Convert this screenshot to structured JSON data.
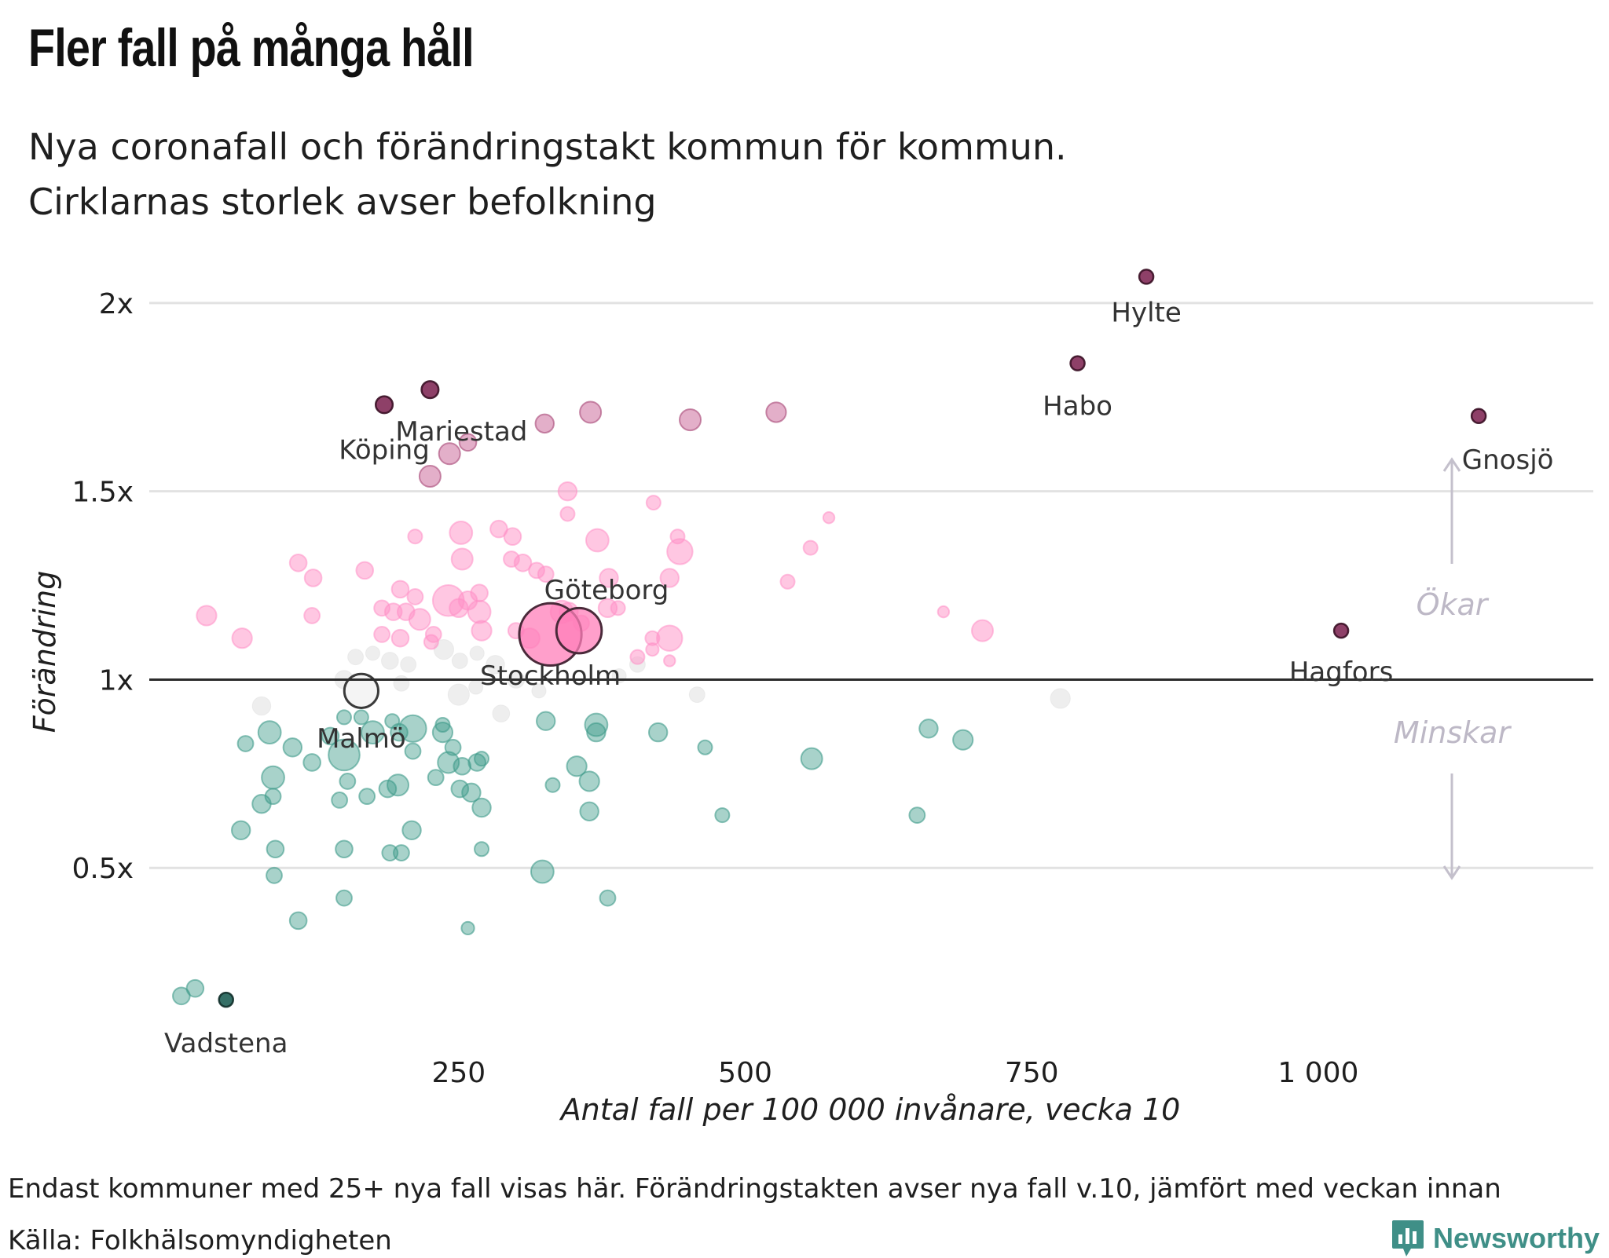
{
  "title": "Fler fall på många håll",
  "subtitle_lines": [
    "Nya coronafall och förändringstakt kommun för kommun.",
    "Cirklarnas storlek avser befolkning"
  ],
  "footnote": "Endast kommuner med 25+ nya fall visas här. Förändringstakten avser nya fall v.10, jämfört med veckan innan",
  "source": "Källa: Folkhälsomyndigheten",
  "brand": "Newsworthy",
  "chart_data": {
    "type": "scatter",
    "xlabel": "Antal fall per 100 000 invånare, vecka 10",
    "ylabel": "Förändring",
    "xlim": [
      -20,
      1240
    ],
    "ylim": [
      0.0,
      2.2
    ],
    "x_ticks": [
      {
        "value": 250,
        "label": "250"
      },
      {
        "value": 500,
        "label": "500"
      },
      {
        "value": 750,
        "label": "750"
      },
      {
        "value": 1000,
        "label": "1 000"
      }
    ],
    "y_ticks": [
      {
        "value": 0.5,
        "label": "0.5x"
      },
      {
        "value": 1,
        "label": "1x"
      },
      {
        "value": 1.5,
        "label": "1.5x"
      },
      {
        "value": 2,
        "label": "2x"
      }
    ],
    "grid": "horizontal",
    "baseline": 1,
    "annotations": {
      "up": "Ökar",
      "down": "Minskar"
    },
    "colors": {
      "increase": "#ff8fc6",
      "decrease": "#3f9b8a",
      "neutral": "#e3e3e3",
      "highlight_increase": "#7a1f4d",
      "highlight_decrease": "#1f5f55",
      "big_city": "#ff7fba"
    },
    "points": [
      {
        "x": 850,
        "y": 2.07,
        "size": 1,
        "cat": "hi_up",
        "label": "Hylte"
      },
      {
        "x": 790,
        "y": 1.84,
        "size": 1,
        "cat": "hi_up",
        "label": "Habo"
      },
      {
        "x": 1140,
        "y": 1.7,
        "size": 1,
        "cat": "hi_up",
        "label": "Gnosjö"
      },
      {
        "x": 1020,
        "y": 1.13,
        "size": 1,
        "cat": "hi_up",
        "label": "Hagfors"
      },
      {
        "x": 225,
        "y": 1.77,
        "size": 1.2,
        "cat": "hi_up",
        "label": "Mariestad"
      },
      {
        "x": 185,
        "y": 1.73,
        "size": 1.2,
        "cat": "hi_up",
        "label": "Köping"
      },
      {
        "x": 47,
        "y": 0.15,
        "size": 1,
        "cat": "hi_down",
        "label": "Vadstena"
      },
      {
        "x": 330,
        "y": 1.12,
        "size": 4.4,
        "cat": "big",
        "label": "Stockholm"
      },
      {
        "x": 355,
        "y": 1.13,
        "size": 3.2,
        "cat": "big",
        "label": "Göteborg"
      },
      {
        "x": 165,
        "y": 0.97,
        "size": 2.4,
        "cat": "neutral_hi",
        "label": "Malmö"
      },
      {
        "x": 325,
        "y": 1.68,
        "size": 1.3,
        "cat": "mid_up"
      },
      {
        "x": 365,
        "y": 1.71,
        "size": 1.5,
        "cat": "mid_up"
      },
      {
        "x": 452,
        "y": 1.69,
        "size": 1.5,
        "cat": "mid_up"
      },
      {
        "x": 527,
        "y": 1.71,
        "size": 1.4,
        "cat": "mid_up"
      },
      {
        "x": 242,
        "y": 1.6,
        "size": 1.5,
        "cat": "mid_up"
      },
      {
        "x": 258,
        "y": 1.63,
        "size": 1.2,
        "cat": "mid_up"
      },
      {
        "x": 225,
        "y": 1.54,
        "size": 1.5,
        "cat": "mid_up"
      },
      {
        "x": 345,
        "y": 1.5,
        "size": 1.3,
        "cat": "up"
      },
      {
        "x": 345,
        "y": 1.44,
        "size": 1,
        "cat": "up"
      },
      {
        "x": 420,
        "y": 1.47,
        "size": 1,
        "cat": "up"
      },
      {
        "x": 573,
        "y": 1.43,
        "size": 0.8,
        "cat": "up"
      },
      {
        "x": 252,
        "y": 1.39,
        "size": 1.6,
        "cat": "up"
      },
      {
        "x": 285,
        "y": 1.4,
        "size": 1.2,
        "cat": "up"
      },
      {
        "x": 297,
        "y": 1.38,
        "size": 1.2,
        "cat": "up"
      },
      {
        "x": 212,
        "y": 1.38,
        "size": 1,
        "cat": "up"
      },
      {
        "x": 371,
        "y": 1.37,
        "size": 1.6,
        "cat": "up"
      },
      {
        "x": 441,
        "y": 1.38,
        "size": 1,
        "cat": "up"
      },
      {
        "x": 443,
        "y": 1.34,
        "size": 1.8,
        "cat": "up"
      },
      {
        "x": 557,
        "y": 1.35,
        "size": 1,
        "cat": "up"
      },
      {
        "x": 253,
        "y": 1.32,
        "size": 1.5,
        "cat": "up"
      },
      {
        "x": 296,
        "y": 1.32,
        "size": 1.1,
        "cat": "up"
      },
      {
        "x": 306,
        "y": 1.31,
        "size": 1.2,
        "cat": "up"
      },
      {
        "x": 318,
        "y": 1.29,
        "size": 1.1,
        "cat": "up"
      },
      {
        "x": 326,
        "y": 1.28,
        "size": 1.1,
        "cat": "up"
      },
      {
        "x": 110,
        "y": 1.31,
        "size": 1.2,
        "cat": "up"
      },
      {
        "x": 123,
        "y": 1.27,
        "size": 1.2,
        "cat": "up"
      },
      {
        "x": 168,
        "y": 1.29,
        "size": 1.2,
        "cat": "up"
      },
      {
        "x": 381,
        "y": 1.27,
        "size": 1.3,
        "cat": "up"
      },
      {
        "x": 434,
        "y": 1.27,
        "size": 1.3,
        "cat": "up"
      },
      {
        "x": 537,
        "y": 1.26,
        "size": 1,
        "cat": "up"
      },
      {
        "x": 241,
        "y": 1.21,
        "size": 2.2,
        "cat": "up"
      },
      {
        "x": 268,
        "y": 1.23,
        "size": 1.2,
        "cat": "up"
      },
      {
        "x": 199,
        "y": 1.24,
        "size": 1.2,
        "cat": "up"
      },
      {
        "x": 212,
        "y": 1.22,
        "size": 1.1,
        "cat": "up"
      },
      {
        "x": 258,
        "y": 1.21,
        "size": 1.3,
        "cat": "up"
      },
      {
        "x": 268,
        "y": 1.18,
        "size": 1.6,
        "cat": "up"
      },
      {
        "x": 346,
        "y": 1.18,
        "size": 1.3,
        "cat": "up"
      },
      {
        "x": 380,
        "y": 1.19,
        "size": 1.3,
        "cat": "up"
      },
      {
        "x": 389,
        "y": 1.19,
        "size": 1,
        "cat": "up"
      },
      {
        "x": 183,
        "y": 1.19,
        "size": 1.1,
        "cat": "up"
      },
      {
        "x": 193,
        "y": 1.18,
        "size": 1.2,
        "cat": "up"
      },
      {
        "x": 204,
        "y": 1.18,
        "size": 1.2,
        "cat": "up"
      },
      {
        "x": 216,
        "y": 1.16,
        "size": 1.5,
        "cat": "up"
      },
      {
        "x": 250,
        "y": 1.19,
        "size": 1.3,
        "cat": "up"
      },
      {
        "x": 30,
        "y": 1.17,
        "size": 1.4,
        "cat": "up"
      },
      {
        "x": 122,
        "y": 1.17,
        "size": 1.1,
        "cat": "up"
      },
      {
        "x": 673,
        "y": 1.18,
        "size": 0.8,
        "cat": "up"
      },
      {
        "x": 270,
        "y": 1.13,
        "size": 1.4,
        "cat": "up"
      },
      {
        "x": 300,
        "y": 1.13,
        "size": 1.1,
        "cat": "up"
      },
      {
        "x": 312,
        "y": 1.11,
        "size": 1.4,
        "cat": "up"
      },
      {
        "x": 434,
        "y": 1.11,
        "size": 1.8,
        "cat": "up"
      },
      {
        "x": 707,
        "y": 1.13,
        "size": 1.5,
        "cat": "up"
      },
      {
        "x": 61,
        "y": 1.11,
        "size": 1.4,
        "cat": "up"
      },
      {
        "x": 183,
        "y": 1.12,
        "size": 1.1,
        "cat": "up"
      },
      {
        "x": 199,
        "y": 1.11,
        "size": 1.2,
        "cat": "up"
      },
      {
        "x": 419,
        "y": 1.11,
        "size": 1,
        "cat": "up"
      },
      {
        "x": 228,
        "y": 1.12,
        "size": 1.1,
        "cat": "up"
      },
      {
        "x": 357,
        "y": 1.15,
        "size": 1.1,
        "cat": "up"
      },
      {
        "x": 340,
        "y": 1.18,
        "size": 1.6,
        "cat": "up"
      },
      {
        "x": 226,
        "y": 1.1,
        "size": 1,
        "cat": "up"
      },
      {
        "x": 434,
        "y": 1.05,
        "size": 0.8,
        "cat": "up"
      },
      {
        "x": 419,
        "y": 1.08,
        "size": 0.9,
        "cat": "up"
      },
      {
        "x": 406,
        "y": 1.06,
        "size": 1,
        "cat": "up"
      },
      {
        "x": 160,
        "y": 1.06,
        "size": 1.1,
        "cat": "neutral"
      },
      {
        "x": 175,
        "y": 1.07,
        "size": 1,
        "cat": "neutral"
      },
      {
        "x": 190,
        "y": 1.05,
        "size": 1.2,
        "cat": "neutral"
      },
      {
        "x": 206,
        "y": 1.04,
        "size": 1.1,
        "cat": "neutral"
      },
      {
        "x": 237,
        "y": 1.08,
        "size": 1.4,
        "cat": "neutral"
      },
      {
        "x": 251,
        "y": 1.05,
        "size": 1.1,
        "cat": "neutral"
      },
      {
        "x": 266,
        "y": 1.07,
        "size": 1,
        "cat": "neutral"
      },
      {
        "x": 282,
        "y": 1.04,
        "size": 1.3,
        "cat": "neutral"
      },
      {
        "x": 150,
        "y": 1.0,
        "size": 1.3,
        "cat": "neutral"
      },
      {
        "x": 200,
        "y": 0.99,
        "size": 1.1,
        "cat": "neutral"
      },
      {
        "x": 250,
        "y": 0.96,
        "size": 1.5,
        "cat": "neutral"
      },
      {
        "x": 300,
        "y": 1.0,
        "size": 1.2,
        "cat": "neutral"
      },
      {
        "x": 320,
        "y": 0.97,
        "size": 1,
        "cat": "neutral"
      },
      {
        "x": 390,
        "y": 1.01,
        "size": 1,
        "cat": "neutral"
      },
      {
        "x": 406,
        "y": 1.04,
        "size": 1.1,
        "cat": "neutral"
      },
      {
        "x": 458,
        "y": 0.96,
        "size": 1.1,
        "cat": "neutral"
      },
      {
        "x": 775,
        "y": 0.95,
        "size": 1.4,
        "cat": "neutral"
      },
      {
        "x": 78,
        "y": 0.93,
        "size": 1.3,
        "cat": "neutral"
      },
      {
        "x": 287,
        "y": 0.91,
        "size": 1.2,
        "cat": "neutral"
      },
      {
        "x": 265,
        "y": 0.98,
        "size": 1,
        "cat": "neutral"
      },
      {
        "x": 150,
        "y": 0.9,
        "size": 1,
        "cat": "down"
      },
      {
        "x": 165,
        "y": 0.9,
        "size": 1,
        "cat": "down"
      },
      {
        "x": 192,
        "y": 0.89,
        "size": 1,
        "cat": "down"
      },
      {
        "x": 236,
        "y": 0.88,
        "size": 1,
        "cat": "down"
      },
      {
        "x": 85,
        "y": 0.86,
        "size": 1.6,
        "cat": "down"
      },
      {
        "x": 175,
        "y": 0.86,
        "size": 1.6,
        "cat": "down"
      },
      {
        "x": 198,
        "y": 0.86,
        "size": 1.2,
        "cat": "down"
      },
      {
        "x": 210,
        "y": 0.87,
        "size": 1.9,
        "cat": "down"
      },
      {
        "x": 236,
        "y": 0.86,
        "size": 1.4,
        "cat": "down"
      },
      {
        "x": 326,
        "y": 0.89,
        "size": 1.3,
        "cat": "down"
      },
      {
        "x": 370,
        "y": 0.88,
        "size": 1.6,
        "cat": "down"
      },
      {
        "x": 370,
        "y": 0.86,
        "size": 1.3,
        "cat": "down"
      },
      {
        "x": 424,
        "y": 0.86,
        "size": 1.3,
        "cat": "down"
      },
      {
        "x": 660,
        "y": 0.87,
        "size": 1.3,
        "cat": "down"
      },
      {
        "x": 690,
        "y": 0.84,
        "size": 1.4,
        "cat": "down"
      },
      {
        "x": 64,
        "y": 0.83,
        "size": 1.1,
        "cat": "down"
      },
      {
        "x": 150,
        "y": 0.8,
        "size": 2.2,
        "cat": "down"
      },
      {
        "x": 138,
        "y": 0.85,
        "size": 1.2,
        "cat": "down"
      },
      {
        "x": 210,
        "y": 0.81,
        "size": 1.1,
        "cat": "down"
      },
      {
        "x": 245,
        "y": 0.82,
        "size": 1.1,
        "cat": "down"
      },
      {
        "x": 105,
        "y": 0.82,
        "size": 1.3,
        "cat": "down"
      },
      {
        "x": 465,
        "y": 0.82,
        "size": 1,
        "cat": "down"
      },
      {
        "x": 122,
        "y": 0.78,
        "size": 1.2,
        "cat": "down"
      },
      {
        "x": 241,
        "y": 0.78,
        "size": 1.5,
        "cat": "down"
      },
      {
        "x": 253,
        "y": 0.77,
        "size": 1.2,
        "cat": "down"
      },
      {
        "x": 266,
        "y": 0.78,
        "size": 1.2,
        "cat": "down"
      },
      {
        "x": 270,
        "y": 0.79,
        "size": 1,
        "cat": "down"
      },
      {
        "x": 353,
        "y": 0.77,
        "size": 1.4,
        "cat": "down"
      },
      {
        "x": 558,
        "y": 0.79,
        "size": 1.5,
        "cat": "down"
      },
      {
        "x": 88,
        "y": 0.74,
        "size": 1.6,
        "cat": "down"
      },
      {
        "x": 153,
        "y": 0.73,
        "size": 1.1,
        "cat": "down"
      },
      {
        "x": 188,
        "y": 0.71,
        "size": 1.2,
        "cat": "down"
      },
      {
        "x": 197,
        "y": 0.72,
        "size": 1.5,
        "cat": "down"
      },
      {
        "x": 230,
        "y": 0.74,
        "size": 1.1,
        "cat": "down"
      },
      {
        "x": 251,
        "y": 0.71,
        "size": 1.2,
        "cat": "down"
      },
      {
        "x": 261,
        "y": 0.7,
        "size": 1.3,
        "cat": "down"
      },
      {
        "x": 332,
        "y": 0.72,
        "size": 1,
        "cat": "down"
      },
      {
        "x": 364,
        "y": 0.73,
        "size": 1.4,
        "cat": "down"
      },
      {
        "x": 88,
        "y": 0.69,
        "size": 1.1,
        "cat": "down"
      },
      {
        "x": 146,
        "y": 0.68,
        "size": 1.1,
        "cat": "down"
      },
      {
        "x": 170,
        "y": 0.69,
        "size": 1.1,
        "cat": "down"
      },
      {
        "x": 78,
        "y": 0.67,
        "size": 1.3,
        "cat": "down"
      },
      {
        "x": 270,
        "y": 0.66,
        "size": 1.3,
        "cat": "down"
      },
      {
        "x": 364,
        "y": 0.65,
        "size": 1.3,
        "cat": "down"
      },
      {
        "x": 480,
        "y": 0.64,
        "size": 1,
        "cat": "down"
      },
      {
        "x": 650,
        "y": 0.64,
        "size": 1.1,
        "cat": "down"
      },
      {
        "x": 60,
        "y": 0.6,
        "size": 1.3,
        "cat": "down"
      },
      {
        "x": 209,
        "y": 0.6,
        "size": 1.3,
        "cat": "down"
      },
      {
        "x": 90,
        "y": 0.55,
        "size": 1.2,
        "cat": "down"
      },
      {
        "x": 150,
        "y": 0.55,
        "size": 1.2,
        "cat": "down"
      },
      {
        "x": 190,
        "y": 0.54,
        "size": 1.1,
        "cat": "down"
      },
      {
        "x": 200,
        "y": 0.54,
        "size": 1.1,
        "cat": "down"
      },
      {
        "x": 270,
        "y": 0.55,
        "size": 1,
        "cat": "down"
      },
      {
        "x": 89,
        "y": 0.48,
        "size": 1.1,
        "cat": "down"
      },
      {
        "x": 323,
        "y": 0.49,
        "size": 1.6,
        "cat": "down"
      },
      {
        "x": 150,
        "y": 0.42,
        "size": 1.1,
        "cat": "down"
      },
      {
        "x": 380,
        "y": 0.42,
        "size": 1.1,
        "cat": "down"
      },
      {
        "x": 110,
        "y": 0.36,
        "size": 1.2,
        "cat": "down"
      },
      {
        "x": 258,
        "y": 0.34,
        "size": 0.9,
        "cat": "down"
      },
      {
        "x": 8,
        "y": 0.16,
        "size": 1.2,
        "cat": "down"
      },
      {
        "x": 20,
        "y": 0.18,
        "size": 1.2,
        "cat": "down"
      }
    ]
  }
}
